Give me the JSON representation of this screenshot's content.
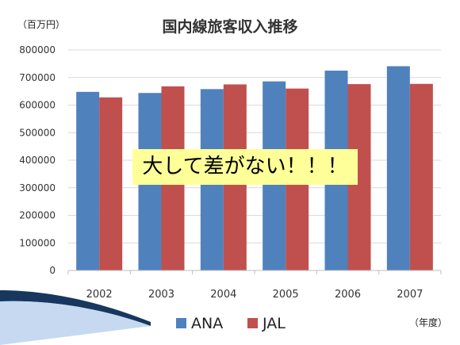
{
  "unit_label": "（百万円）",
  "year_label": "（年度）",
  "callout": "大して差がない！！！",
  "colors": {
    "ANA": "#4f81bd",
    "JAL": "#c0504d",
    "grid": "#d9d9d9",
    "axis": "#bfbfbf"
  },
  "chart_data": {
    "type": "bar",
    "title": "国内線旅客収入推移",
    "categories": [
      "2002",
      "2003",
      "2004",
      "2005",
      "2006",
      "2007"
    ],
    "series": [
      {
        "name": "ANA",
        "values": [
          648000,
          644000,
          658000,
          686000,
          725000,
          741000
        ]
      },
      {
        "name": "JAL",
        "values": [
          628000,
          668000,
          675000,
          660000,
          676000,
          677000
        ]
      }
    ],
    "ylim": [
      0,
      800000
    ],
    "yticks": [
      "0",
      "100000",
      "200000",
      "300000",
      "400000",
      "500000",
      "600000",
      "700000",
      "800000"
    ],
    "grid": true,
    "legend": "bottom"
  }
}
